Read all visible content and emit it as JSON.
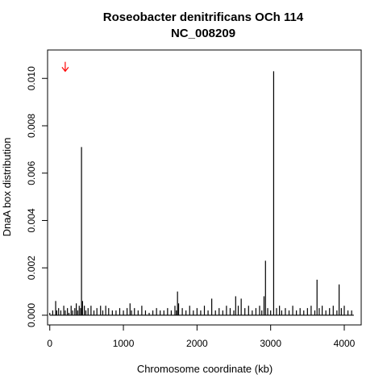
{
  "chart_data": {
    "type": "bar",
    "title": "Roseobacter denitrificans OCh 114",
    "subtitle": "NC_008209",
    "xlabel": "Chromosome coordinate (kb)",
    "ylabel": "DnaA box distribution",
    "xlim": [
      -30,
      4230
    ],
    "ylim": [
      -0.00041,
      0.0112
    ],
    "x_ticks": [
      0,
      1000,
      2000,
      3000,
      4000
    ],
    "x_tick_labels": [
      "0",
      "1000",
      "2000",
      "3000",
      "4000"
    ],
    "y_ticks": [
      0.0,
      0.002,
      0.004,
      0.006,
      0.008,
      0.01
    ],
    "y_tick_labels": [
      "0.000",
      "0.002",
      "0.004",
      "0.006",
      "0.008",
      "0.010"
    ],
    "grid": false,
    "legend": "none",
    "marker": {
      "x": 210,
      "y_top": 0.0107,
      "y_bottom": 0.0103,
      "color": "#ff0000"
    },
    "bars": {
      "x": [
        0,
        40,
        80,
        95,
        120,
        150,
        190,
        210,
        240,
        260,
        290,
        310,
        340,
        360,
        380,
        400,
        420,
        431,
        445,
        470,
        490,
        520,
        560,
        600,
        640,
        690,
        720,
        760,
        800,
        850,
        900,
        950,
        1000,
        1050,
        1090,
        1110,
        1150,
        1200,
        1250,
        1300,
        1350,
        1400,
        1450,
        1500,
        1550,
        1600,
        1650,
        1700,
        1720,
        1735,
        1750,
        1800,
        1850,
        1900,
        1950,
        2000,
        2050,
        2100,
        2150,
        2200,
        2250,
        2300,
        2350,
        2400,
        2450,
        2500,
        2525,
        2560,
        2600,
        2650,
        2700,
        2750,
        2800,
        2850,
        2880,
        2910,
        2930,
        2960,
        3000,
        3041,
        3080,
        3120,
        3150,
        3200,
        3250,
        3300,
        3350,
        3400,
        3450,
        3500,
        3550,
        3600,
        3630,
        3660,
        3700,
        3750,
        3800,
        3850,
        3900,
        3930,
        3960,
        4000,
        4050,
        4100
      ],
      "values": [
        0.0001,
        0.0002,
        0.0006,
        0.0002,
        0.0003,
        0.0002,
        0.0004,
        0.0002,
        0.0003,
        0.0001,
        0.0004,
        0.0002,
        0.0003,
        0.0005,
        0.0002,
        0.0004,
        0.0003,
        0.0071,
        0.0006,
        0.0004,
        0.0002,
        0.0003,
        0.0004,
        0.0002,
        0.0003,
        0.0004,
        0.0002,
        0.0004,
        0.0003,
        0.0002,
        0.0002,
        0.0003,
        0.0002,
        0.0003,
        0.0005,
        0.0002,
        0.0003,
        0.0002,
        0.0004,
        0.0002,
        0.0001,
        0.0002,
        0.0003,
        0.0002,
        0.0002,
        0.0003,
        0.0002,
        0.0004,
        0.0002,
        0.001,
        0.0005,
        0.0003,
        0.0002,
        0.0004,
        0.0002,
        0.0003,
        0.0002,
        0.0004,
        0.0002,
        0.0007,
        0.0002,
        0.0003,
        0.0002,
        0.0004,
        0.0003,
        0.0002,
        0.0008,
        0.0004,
        0.0007,
        0.0003,
        0.0004,
        0.0002,
        0.0003,
        0.0004,
        0.0002,
        0.0008,
        0.0023,
        0.0003,
        0.0002,
        0.0103,
        0.0003,
        0.0004,
        0.0002,
        0.0003,
        0.0002,
        0.0004,
        0.0002,
        0.0003,
        0.0002,
        0.0003,
        0.0004,
        0.0002,
        0.0015,
        0.0003,
        0.0004,
        0.0002,
        0.0003,
        0.0004,
        0.0002,
        0.0013,
        0.0003,
        0.0004,
        0.0002,
        0.0002
      ]
    }
  }
}
